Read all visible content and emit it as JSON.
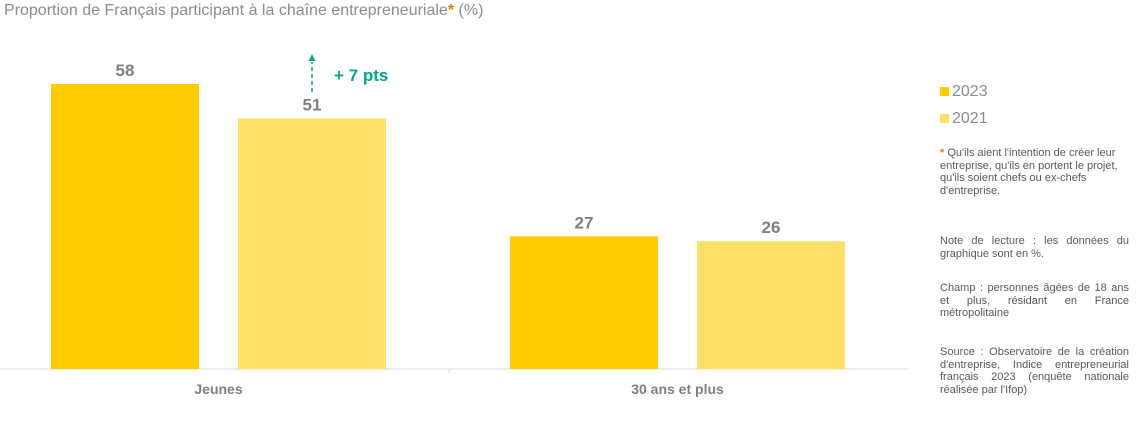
{
  "header": {
    "title": "Proportion de Français participant à la chaîne entrepreneuriale",
    "title_star": "*",
    "title_unit": "(%)"
  },
  "chart_data": {
    "type": "bar",
    "categories": [
      "Jeunes",
      "30 ans et plus"
    ],
    "series": [
      {
        "name": "2023",
        "values": [
          58,
          27
        ],
        "color": "#ffcc00"
      },
      {
        "name": "2021",
        "values": [
          51,
          26
        ],
        "color": "#ffe066"
      }
    ],
    "ylim": [
      0,
      65
    ],
    "grid": false,
    "legend_position": "right",
    "annotation": {
      "text": "+ 7 pts",
      "color": "#00a88e",
      "category": "Jeunes"
    }
  },
  "notes": {
    "footnote_star": "*",
    "footnote": " Qu'ils aient l'intention de créer leur entreprise, qu'ils en portent le projet, qu'ils soient chefs ou ex-chefs d'entreprise.",
    "lecture": "Note de lecture : les données du graphique sont en %.",
    "champ": "Champ : personnes âgées de 18 ans et plus, résidant en France métropolitaine",
    "source": "Source : Observatoire de la création d'entreprise, Indice entrepreneurial français 2023 (enquête nationale réalisée par l'Ifop)"
  }
}
